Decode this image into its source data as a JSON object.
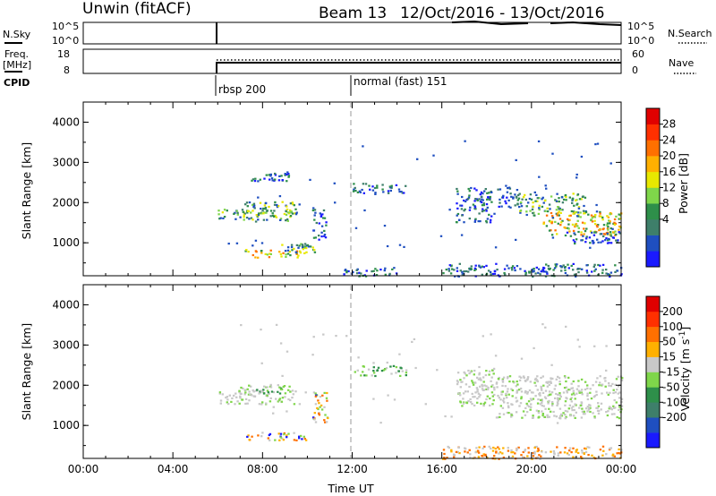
{
  "header": {
    "station": "Unwin (fitACF)",
    "beam": "Beam 13",
    "date_range": "12/Oct/2016 - 13/Oct/2016"
  },
  "status_panels": {
    "nsky_label": "N.Sky",
    "nsky_ticks": [
      "10^5",
      "10^0"
    ],
    "nsearch_label": "N.Search",
    "nsearch_ticks": [
      "10^5",
      "10^0"
    ],
    "freq_label": "Freq.",
    "freq_unit": "[MHz]",
    "freq_ticks": [
      "18",
      "8"
    ],
    "nave_label": "Nave",
    "nave_ticks": [
      "60",
      "0"
    ],
    "cpid_label": "CPID",
    "cpid_entries": [
      {
        "time": "06:00",
        "label": "rbsp 200"
      },
      {
        "time": "12:00",
        "label": "normal (fast) 151"
      }
    ]
  },
  "chart_data": [
    {
      "type": "heatmap",
      "parameter": "Power",
      "ylabel": "Slant Range [km]",
      "ylim": [
        180,
        4500
      ],
      "yticks": [
        "4000",
        "3000",
        "2000",
        "1000"
      ],
      "colorbar": {
        "label": "Power [dB]",
        "ticks": [
          "28",
          "24",
          "20",
          "16",
          "12",
          "8",
          "4"
        ],
        "colors": [
          "#1a1aff",
          "#1f4fc0",
          "#3e7f6a",
          "#2e8f4a",
          "#7fd64a",
          "#e8e800",
          "#ffb000",
          "#ff7000",
          "#ff3000",
          "#e00000"
        ]
      },
      "regions": [
        {
          "t": [
            6.0,
            9.4
          ],
          "r": [
            1550,
            1850
          ],
          "level": "mid"
        },
        {
          "t": [
            7.0,
            9.5
          ],
          "r": [
            1750,
            2050
          ],
          "level": "mid"
        },
        {
          "t": [
            7.4,
            9.2
          ],
          "r": [
            2550,
            2750
          ],
          "level": "low"
        },
        {
          "t": [
            7.2,
            10.0
          ],
          "r": [
            650,
            850
          ],
          "level": "high"
        },
        {
          "t": [
            8.8,
            10.3
          ],
          "r": [
            780,
            1000
          ],
          "level": "mid"
        },
        {
          "t": [
            10.2,
            10.8
          ],
          "r": [
            1100,
            1900
          ],
          "level": "low"
        },
        {
          "t": [
            12.0,
            14.4
          ],
          "r": [
            2250,
            2500
          ],
          "level": "low"
        },
        {
          "t": [
            16.6,
            18.2
          ],
          "r": [
            1500,
            2400
          ],
          "level": "low"
        },
        {
          "t": [
            18.4,
            19.5
          ],
          "r": [
            1900,
            2400
          ],
          "level": "low"
        },
        {
          "t": [
            19.4,
            22.4
          ],
          "r": [
            1700,
            2250
          ],
          "level": "mid"
        },
        {
          "t": [
            20.5,
            24.0
          ],
          "r": [
            1200,
            1800
          ],
          "level": "high"
        },
        {
          "t": [
            21.5,
            24.0
          ],
          "r": [
            1000,
            1300
          ],
          "level": "low"
        },
        {
          "t": [
            16.0,
            24.0
          ],
          "r": [
            180,
            500
          ],
          "level": "low"
        },
        {
          "t": [
            11.5,
            14.0
          ],
          "r": [
            180,
            400
          ],
          "level": "low"
        }
      ]
    },
    {
      "type": "heatmap",
      "parameter": "Velocity",
      "ylabel": "Slant Range [km]",
      "ylim": [
        180,
        4500
      ],
      "yticks": [
        "4000",
        "3000",
        "2000",
        "1000"
      ],
      "colorbar": {
        "label": "Velocity [m s^-1]",
        "ticks": [
          "200",
          "100",
          "50",
          "15",
          "-15",
          "-50",
          "-100",
          "-200"
        ],
        "colors": [
          "#1a1aff",
          "#1f4fc0",
          "#3e7f6a",
          "#2e8f4a",
          "#7fd64a",
          "#c8c8c8",
          "#ffb000",
          "#ff7000",
          "#ff3000",
          "#e00000"
        ]
      },
      "regions": [
        {
          "t": [
            6.0,
            9.4
          ],
          "r": [
            1550,
            1900
          ],
          "level": "gray"
        },
        {
          "t": [
            7.0,
            9.5
          ],
          "r": [
            1800,
            2050
          ],
          "level": "green"
        },
        {
          "t": [
            7.2,
            10.0
          ],
          "r": [
            650,
            850
          ],
          "level": "mixed"
        },
        {
          "t": [
            10.2,
            10.9
          ],
          "r": [
            1100,
            1900
          ],
          "level": "mixed"
        },
        {
          "t": [
            12.0,
            14.4
          ],
          "r": [
            2250,
            2500
          ],
          "level": "green"
        },
        {
          "t": [
            16.6,
            18.4
          ],
          "r": [
            1500,
            2400
          ],
          "level": "gray"
        },
        {
          "t": [
            18.4,
            24.0
          ],
          "r": [
            1200,
            2250
          ],
          "level": "gray"
        },
        {
          "t": [
            16.0,
            24.0
          ],
          "r": [
            180,
            500
          ],
          "level": "orange"
        }
      ],
      "xlabel": "Time UT",
      "xticks": [
        "00:00",
        "04:00",
        "08:00",
        "12:00",
        "16:00",
        "20:00",
        "00:00"
      ],
      "xlim": [
        0,
        24
      ]
    }
  ]
}
